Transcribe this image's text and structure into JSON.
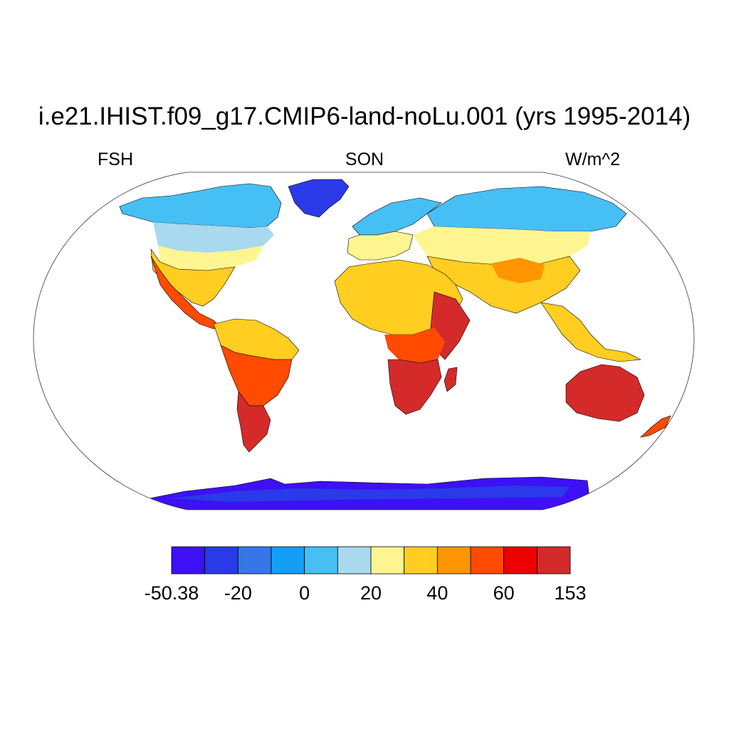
{
  "title": "i.e21.IHIST.f09_g17.CMIP6-land-noLu.001 (yrs 1995-2014)",
  "left_label": "FSH",
  "center_label": "SON",
  "right_label": "W/m^2",
  "colorbar": {
    "colors": [
      "#3d10f5",
      "#2a3ae8",
      "#3577e8",
      "#139ff5",
      "#46bff5",
      "#a9d9ef",
      "#fff590",
      "#ffce20",
      "#ff9500",
      "#ff4a00",
      "#ee0000",
      "#d42a2a"
    ],
    "labels": [
      "-50.38",
      "-20",
      "0",
      "20",
      "40",
      "60",
      "153"
    ],
    "label_boundary_index": [
      0,
      2,
      4,
      6,
      8,
      10,
      12
    ]
  },
  "map": {
    "projection": "Robinson",
    "variable": "FSH",
    "season": "SON",
    "units": "W/m^2"
  }
}
